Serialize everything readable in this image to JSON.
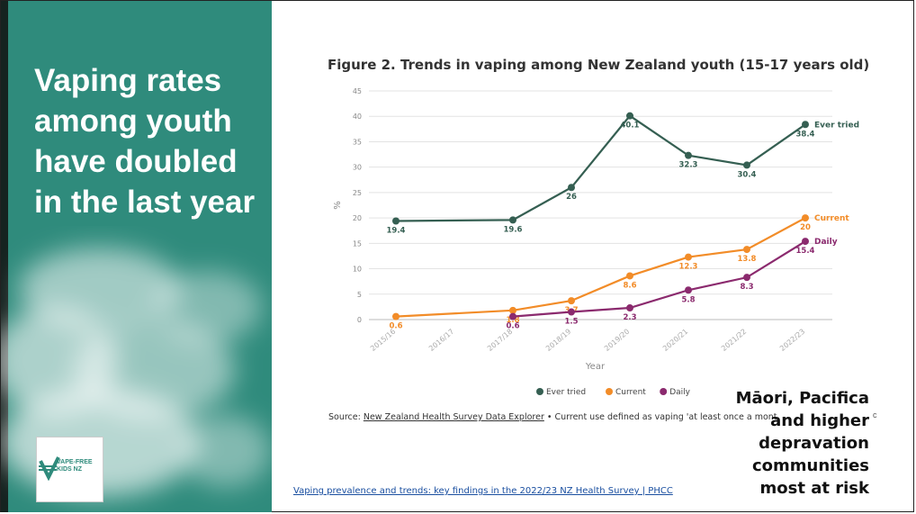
{
  "slide": {
    "headline": "Vaping rates among youth have doubled in the last year",
    "callout": "Māori, Pacifica and higher depravation communities most at risk",
    "callout_mark": "c",
    "link_text": "Vaping prevalence and trends: key findings in the 2022/23 NZ Health Survey | PHCC",
    "logo": {
      "line1": "VAPE-FREE",
      "line2": "KIDS NZ",
      "color": "#2f8b7c"
    },
    "panel_color": "#2f8b7c"
  },
  "chart_data": {
    "type": "line",
    "title": "Figure 2. Trends in vaping among New Zealand youth (15-17 years old)",
    "xlabel": "Year",
    "ylabel": "%",
    "ylim": [
      0,
      45
    ],
    "yticks": [
      0,
      5,
      10,
      15,
      20,
      25,
      30,
      35,
      40,
      45
    ],
    "categories": [
      "2015/16",
      "2016/17",
      "2017/18",
      "2018/19",
      "2019/20",
      "2020/21",
      "2021/22",
      "2022/23"
    ],
    "grid": true,
    "legend": "bottom",
    "series": [
      {
        "name": "Ever tried",
        "color": "#355f52",
        "values": [
          19.4,
          null,
          19.6,
          26,
          40.1,
          32.3,
          30.4,
          38.4
        ],
        "labels": [
          "19.4",
          "",
          "19.6",
          "26",
          "40.1",
          "32.3",
          "30.4",
          "38.4"
        ]
      },
      {
        "name": "Current",
        "color": "#f28c28",
        "values": [
          0.6,
          null,
          1.8,
          3.7,
          8.6,
          12.3,
          13.8,
          20
        ],
        "labels": [
          "0.6",
          "",
          "1.8",
          "3.7",
          "8.6",
          "12.3",
          "13.8",
          "20"
        ]
      },
      {
        "name": "Daily",
        "color": "#8b2a6e",
        "values": [
          null,
          null,
          0.6,
          1.5,
          2.3,
          5.8,
          8.3,
          15.4
        ],
        "labels": [
          "",
          "",
          "0.6",
          "1.5",
          "2.3",
          "5.8",
          "8.3",
          "15.4"
        ]
      }
    ],
    "source_prefix": "Source: ",
    "source_link": "New Zealand Health Survey Data Explorer",
    "source_note": " • Current use defined as vaping 'at least once a mont"
  }
}
